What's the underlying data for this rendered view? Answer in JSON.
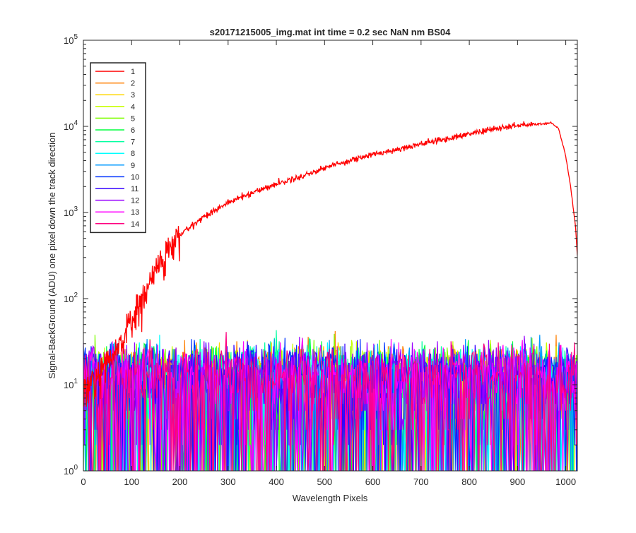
{
  "chart_data": {
    "type": "line",
    "title": "s20171215005_img.mat int time = 0.2 sec  NaN nm BS04",
    "xlabel": "Wavelength Pixels",
    "ylabel": "Signal-BackGround (ADU) one pixel down the track direction",
    "xlim": [
      0,
      1024
    ],
    "ylim": [
      1,
      100000
    ],
    "yscale": "log",
    "grid": false,
    "legend_position": "top-left",
    "x_ticks": [
      "0",
      "100",
      "200",
      "300",
      "400",
      "500",
      "600",
      "700",
      "800",
      "900",
      "1000"
    ],
    "x_tick_values": [
      0,
      100,
      200,
      300,
      400,
      500,
      600,
      700,
      800,
      900,
      1000
    ],
    "y_ticks": [
      {
        "base": "10",
        "exp": "0",
        "value": 1
      },
      {
        "base": "10",
        "exp": "1",
        "value": 10
      },
      {
        "base": "10",
        "exp": "2",
        "value": 100
      },
      {
        "base": "10",
        "exp": "3",
        "value": 1000
      },
      {
        "base": "10",
        "exp": "4",
        "value": 10000
      },
      {
        "base": "10",
        "exp": "5",
        "value": 100000
      }
    ],
    "signal_series": {
      "name": "1",
      "color": "#ff0000",
      "x": [
        0,
        60,
        80,
        100,
        120,
        150,
        200,
        250,
        300,
        350,
        400,
        450,
        500,
        550,
        600,
        650,
        700,
        750,
        800,
        850,
        900,
        950,
        970,
        985,
        1000,
        1010,
        1020,
        1024
      ],
      "values": [
        8,
        20,
        35,
        55,
        90,
        220,
        550,
        900,
        1300,
        1700,
        2150,
        2600,
        3300,
        4000,
        4700,
        5400,
        6300,
        7100,
        8200,
        9300,
        10200,
        10700,
        11000,
        9500,
        4500,
        2000,
        700,
        320
      ]
    },
    "noise_series": [
      {
        "name": "2",
        "color": "#ff7f00",
        "level": 12
      },
      {
        "name": "3",
        "color": "#ffd700",
        "level": 12
      },
      {
        "name": "4",
        "color": "#c8ff00",
        "level": 12
      },
      {
        "name": "5",
        "color": "#7fff00",
        "level": 12
      },
      {
        "name": "6",
        "color": "#00ff3f",
        "level": 12
      },
      {
        "name": "7",
        "color": "#00ffa0",
        "level": 12
      },
      {
        "name": "8",
        "color": "#00ffff",
        "level": 12
      },
      {
        "name": "9",
        "color": "#0099ff",
        "level": 12
      },
      {
        "name": "10",
        "color": "#0033ff",
        "level": 12
      },
      {
        "name": "11",
        "color": "#3300ff",
        "level": 12
      },
      {
        "name": "12",
        "color": "#9900ff",
        "level": 12
      },
      {
        "name": "13",
        "color": "#ff00ff",
        "level": 12
      },
      {
        "name": "14",
        "color": "#ff0080",
        "level": 12
      }
    ],
    "noise_range": [
      1,
      45
    ]
  }
}
